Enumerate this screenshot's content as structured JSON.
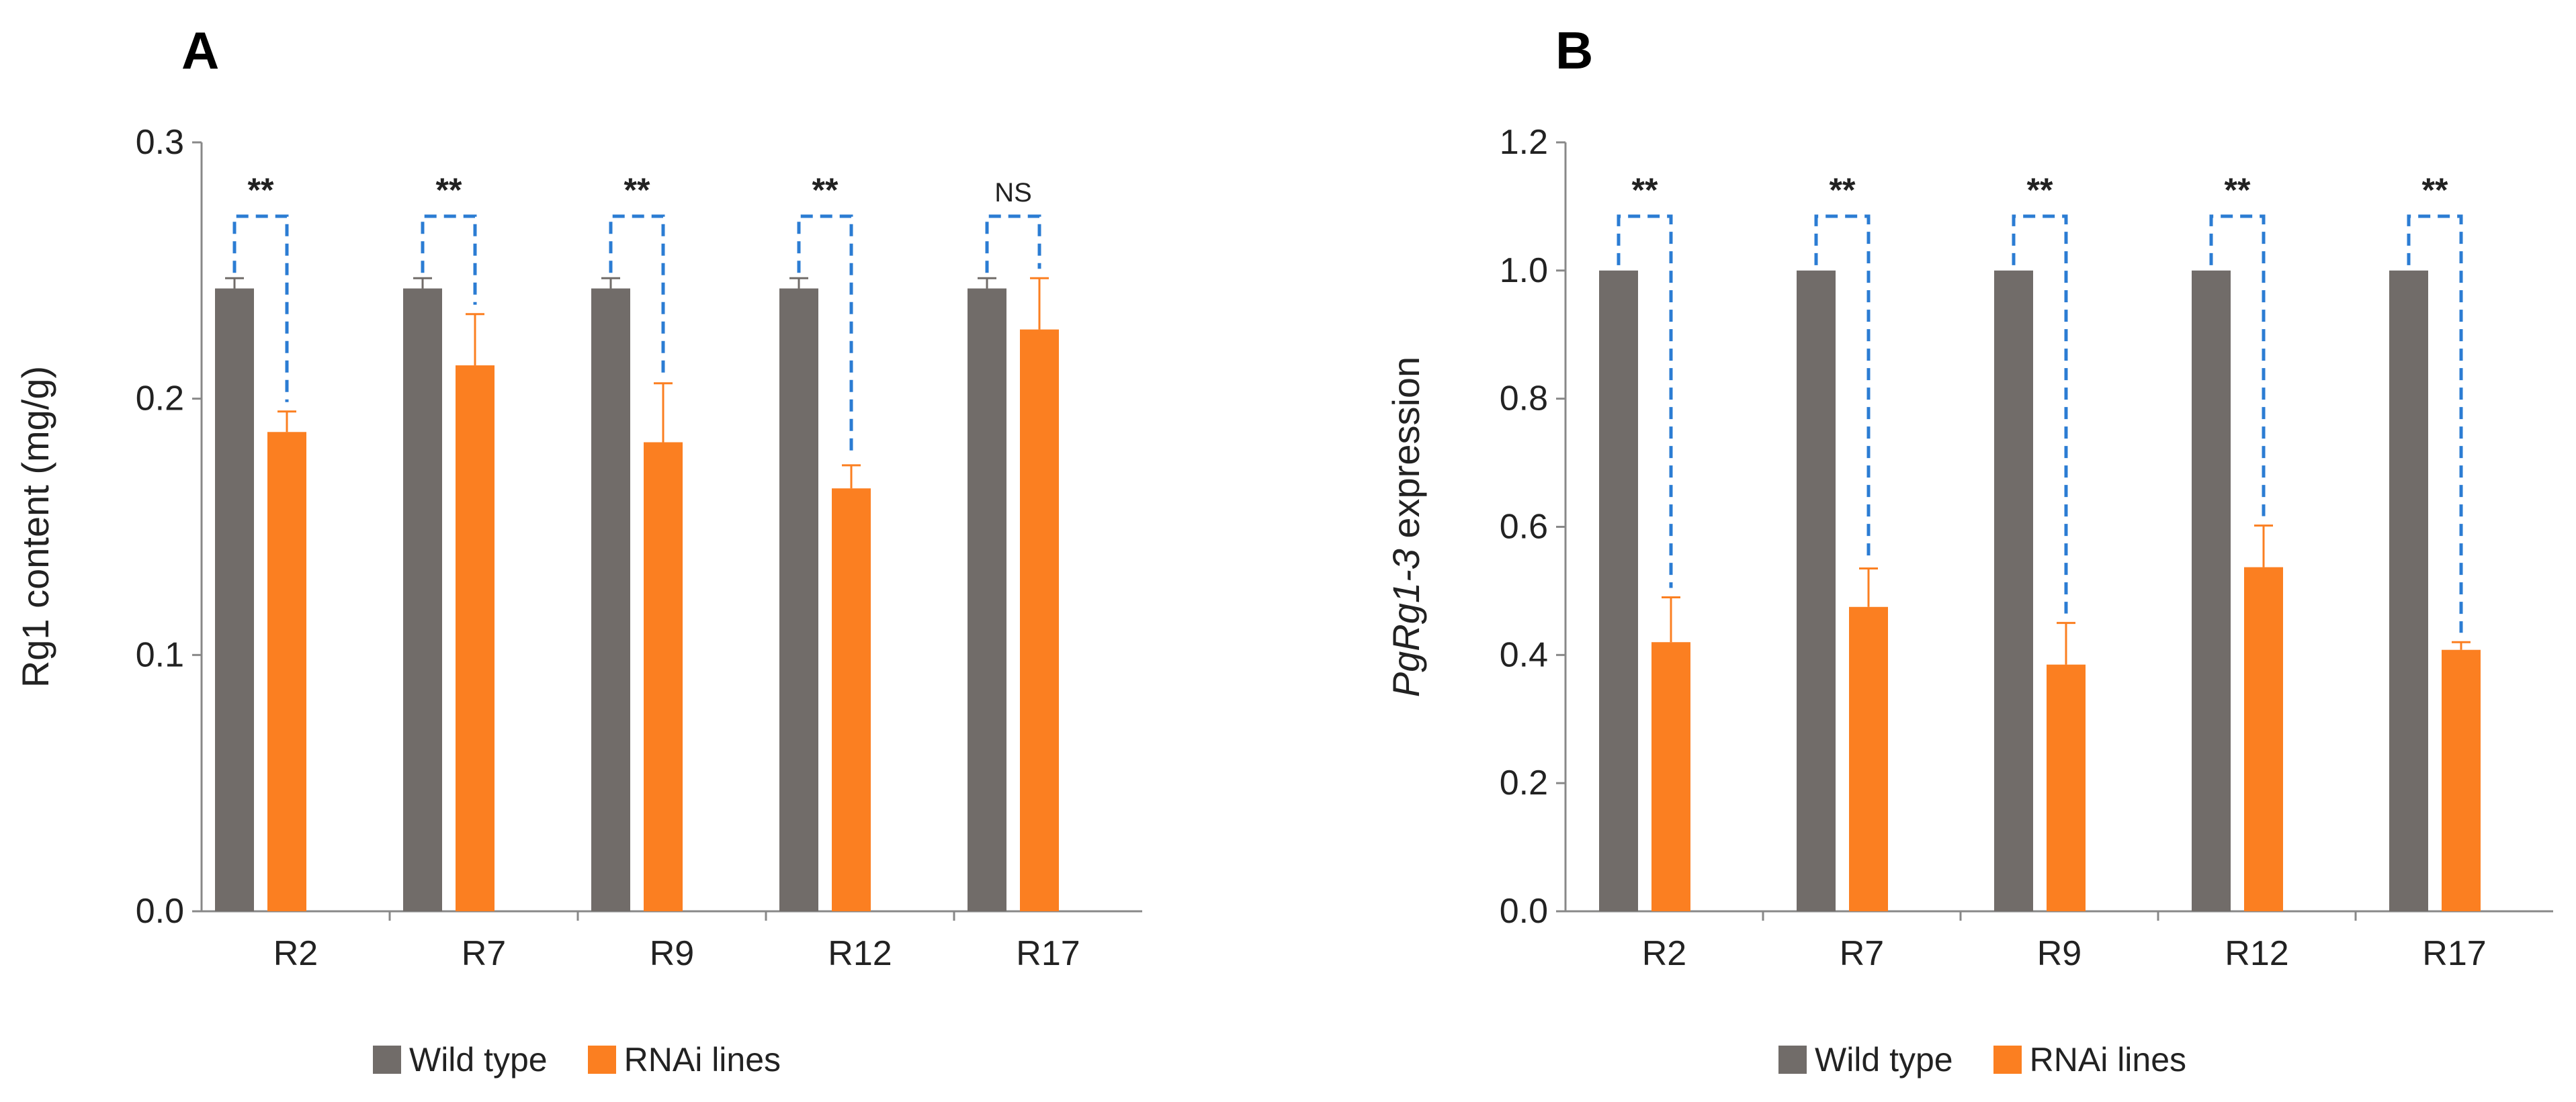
{
  "colors": {
    "wild_type": "#716c69",
    "rnai": "#fb7f21",
    "bracket": "#2b7cd3",
    "axis": "#888888",
    "text": "#222222"
  },
  "legend": {
    "wild_type": "Wild type",
    "rnai": "RNAi lines"
  },
  "chart_data": [
    {
      "panel": "A",
      "type": "bar",
      "title": "",
      "xlabel": "",
      "ylabel": "Rg1 content (mg/g)",
      "ylim": [
        0,
        0.3
      ],
      "yticks": [
        "0.0",
        "0.1",
        "0.2",
        "0.3"
      ],
      "ytick_values": [
        0,
        0.1,
        0.2,
        0.3
      ],
      "categories": [
        "R2",
        "R7",
        "R9",
        "R12",
        "R17"
      ],
      "series": [
        {
          "name": "Wild type",
          "values": [
            0.243,
            0.243,
            0.243,
            0.243,
            0.243
          ],
          "errors": [
            0.004,
            0.004,
            0.004,
            0.004,
            0.004
          ]
        },
        {
          "name": "RNAi lines",
          "values": [
            0.187,
            0.213,
            0.183,
            0.165,
            0.227
          ],
          "errors": [
            0.008,
            0.02,
            0.023,
            0.009,
            0.02
          ]
        }
      ],
      "significance": [
        "**",
        "**",
        "**",
        "**",
        "NS"
      ]
    },
    {
      "panel": "B",
      "type": "bar",
      "title": "",
      "xlabel": "",
      "ylabel_italic": "PgRg1-3",
      "ylabel_rest": " expression",
      "ylim": [
        0,
        1.2
      ],
      "yticks": [
        "0.0",
        "0.2",
        "0.4",
        "0.6",
        "0.8",
        "1.0",
        "1.2"
      ],
      "ytick_values": [
        0,
        0.2,
        0.4,
        0.6,
        0.8,
        1.0,
        1.2
      ],
      "categories": [
        "R2",
        "R7",
        "R9",
        "R12",
        "R17"
      ],
      "series": [
        {
          "name": "Wild type",
          "values": [
            1.0,
            1.0,
            1.0,
            1.0,
            1.0
          ],
          "errors": [
            0,
            0,
            0,
            0,
            0
          ]
        },
        {
          "name": "RNAi lines",
          "values": [
            0.42,
            0.475,
            0.385,
            0.537,
            0.408
          ],
          "errors": [
            0.07,
            0.06,
            0.065,
            0.065,
            0.012
          ]
        }
      ],
      "significance": [
        "**",
        "**",
        "**",
        "**",
        "**"
      ]
    }
  ]
}
